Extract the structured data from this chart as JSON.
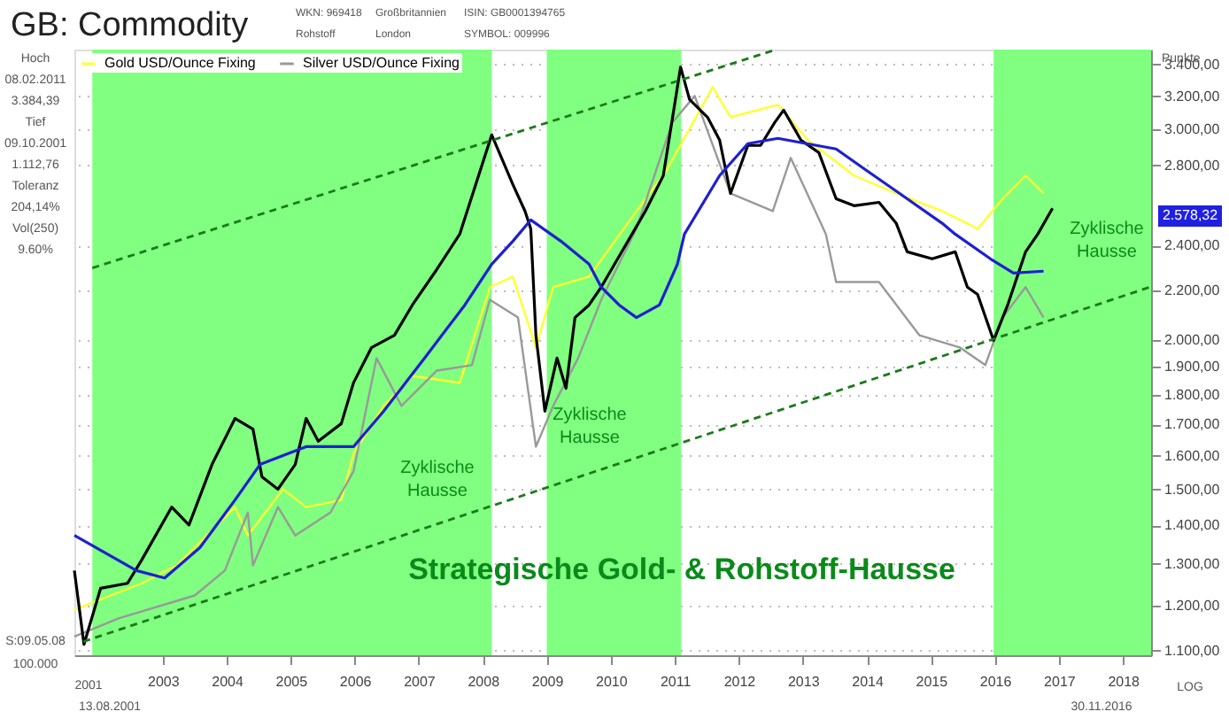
{
  "chart_data": {
    "type": "line",
    "title": "GB: Commodity",
    "ylabel": "Punkte",
    "xlim": [
      2001.62,
      2018.44
    ],
    "xticks": [
      2003,
      2004,
      2005,
      2006,
      2007,
      2008,
      2009,
      2010,
      2011,
      2012,
      2013,
      2014,
      2015,
      2016,
      2017,
      2018
    ],
    "ylim": [
      1090,
      3500
    ],
    "log": true,
    "yticks": [
      {
        "value": 1100,
        "label": "1.100,00"
      },
      {
        "value": 1200,
        "label": "1.200,00"
      },
      {
        "value": 1300,
        "label": "1.300,00"
      },
      {
        "value": 1400,
        "label": "1.400,00"
      },
      {
        "value": 1500,
        "label": "1.500,00"
      },
      {
        "value": 1600,
        "label": "1.600,00"
      },
      {
        "value": 1700,
        "label": "1.700,00"
      },
      {
        "value": 1800,
        "label": "1.800,00"
      },
      {
        "value": 1900,
        "label": "1.900,00"
      },
      {
        "value": 2000,
        "label": "2.000,00"
      },
      {
        "value": 2200,
        "label": "2.200,00"
      },
      {
        "value": 2400,
        "label": "2.400,00"
      },
      {
        "value": 2800,
        "label": "2.800,00"
      },
      {
        "value": 3000,
        "label": "3.000,00"
      },
      {
        "value": 3200,
        "label": "3.200,00"
      },
      {
        "value": 3400,
        "label": "3.400,00"
      }
    ],
    "grid": "y",
    "legend": "top left",
    "bands": [
      {
        "axis": "x",
        "from": 2001.9,
        "to": 2008.14,
        "color": "#80ff80"
      },
      {
        "axis": "x",
        "from": 2009.0,
        "to": 2011.1,
        "color": "#80ff80"
      },
      {
        "axis": "x",
        "from": 2015.98,
        "to": 2018.44,
        "color": "#80ff80"
      }
    ],
    "series": [
      {
        "name": "Gold USD/Ounce Fixing",
        "color": "#ffff33",
        "x": [
          2001.62,
          2002.67,
          2003.22,
          2004.13,
          2004.33,
          2004.88,
          2005.24,
          2005.79,
          2005.98,
          2006.45,
          2006.9,
          2007.64,
          2008.11,
          2008.47,
          2008.83,
          2009.1,
          2009.66,
          2010.4,
          2010.87,
          2011.59,
          2011.87,
          2012.61,
          2013.08,
          2013.8,
          2014.46,
          2015.18,
          2015.57,
          2015.73,
          2016.12,
          2016.48,
          2016.76
        ],
        "values": [
          1190,
          1252,
          1296,
          1450,
          1373,
          1501,
          1450,
          1470,
          1607,
          1762,
          1867,
          1842,
          2215,
          2260,
          1971,
          2215,
          2260,
          2564,
          2774,
          3256,
          3073,
          3147,
          2940,
          2746,
          2653,
          2564,
          2504,
          2478,
          2626,
          2746,
          2653
        ]
      },
      {
        "name": "Silver USD/Ounce Fixing",
        "color": "#999999",
        "x": [
          2001.62,
          2002.31,
          2003.5,
          2003.97,
          2004.33,
          2004.41,
          2004.8,
          2005.07,
          2005.62,
          2005.98,
          2006.34,
          2006.73,
          2007.28,
          2007.83,
          2008.11,
          2008.55,
          2008.83,
          2009.1,
          2009.49,
          2009.85,
          2010.4,
          2010.96,
          2011.31,
          2011.87,
          2012.53,
          2012.81,
          2013.36,
          2013.52,
          2014.19,
          2014.82,
          2015.46,
          2015.85,
          2016.12,
          2016.48,
          2016.76
        ],
        "values": [
          1130,
          1170,
          1223,
          1283,
          1435,
          1296,
          1450,
          1373,
          1435,
          1553,
          1932,
          1762,
          1886,
          1906,
          2162,
          2089,
          1629,
          1762,
          1932,
          2162,
          2478,
          3041,
          3201,
          2653,
          2564,
          2841,
          2453,
          2237,
          2237,
          2019,
          1971,
          1906,
          2089,
          2215,
          2089
        ]
      },
      {
        "color": "#000000",
        "x": [
          2001.62,
          2001.77,
          2002.03,
          2002.45,
          2002.67,
          2003.14,
          2003.41,
          2003.77,
          2004.13,
          2004.41,
          2004.55,
          2004.8,
          2005.07,
          2005.24,
          2005.43,
          2005.79,
          2005.98,
          2006.26,
          2006.62,
          2006.9,
          2007.28,
          2007.64,
          2008.14,
          2008.47,
          2008.66,
          2008.75,
          2008.83,
          2008.97,
          2009.16,
          2009.3,
          2009.44,
          2009.66,
          2009.85,
          2010.54,
          2010.82,
          2011.09,
          2011.23,
          2011.51,
          2011.7,
          2011.87,
          2012.14,
          2012.34,
          2012.56,
          2012.7,
          2012.97,
          2013.25,
          2013.52,
          2013.8,
          2014.19,
          2014.46,
          2014.63,
          2015.02,
          2015.38,
          2015.57,
          2015.73,
          2015.98,
          2016.2,
          2016.48,
          2016.67,
          2016.9
        ],
        "values": [
          1283,
          1113,
          1240,
          1252,
          1309,
          1450,
          1401,
          1574,
          1720,
          1685,
          1537,
          1501,
          1574,
          1720,
          1646,
          1703,
          1842,
          1971,
          2019,
          2140,
          2291,
          2453,
          2970,
          2699,
          2564,
          2478,
          2019,
          1744,
          1932,
          1823,
          2089,
          2140,
          2215,
          2564,
          2746,
          3384,
          3179,
          3073,
          2940,
          2653,
          2910,
          2910,
          3041,
          3115,
          2940,
          2870,
          2626,
          2591,
          2608,
          2504,
          2371,
          2339,
          2371,
          2215,
          2184,
          1999,
          2140,
          2371,
          2453,
          2578
        ]
      },
      {
        "color": "#1f1fd0",
        "x": [
          2001.62,
          2002.59,
          2003.03,
          2003.58,
          2004.13,
          2004.52,
          2005.24,
          2005.98,
          2006.45,
          2007.09,
          2007.72,
          2008.14,
          2008.47,
          2008.75,
          2009.22,
          2009.66,
          2009.85,
          2010.13,
          2010.4,
          2010.76,
          2011.04,
          2011.15,
          2011.7,
          2012.14,
          2012.61,
          2013.52,
          2013.99,
          2014.63,
          2015.18,
          2015.38,
          2015.93,
          2016.29,
          2016.76
        ],
        "values": [
          1373,
          1283,
          1265,
          1341,
          1470,
          1574,
          1629,
          1629,
          1744,
          1932,
          2140,
          2315,
          2420,
          2521,
          2420,
          2315,
          2215,
          2140,
          2089,
          2140,
          2315,
          2453,
          2746,
          2920,
          2950,
          2890,
          2774,
          2626,
          2504,
          2453,
          2339,
          2276,
          2284
        ]
      },
      {
        "color": "#1a7a1a",
        "line_style": "dashed",
        "x": [
          2001.9,
          2012.58
        ],
        "values": [
          2298,
          3500
        ]
      },
      {
        "color": "#1a7a1a",
        "line_style": "dashed",
        "x": [
          2001.76,
          2018.41
        ],
        "values": [
          1119,
          2214
        ]
      }
    ],
    "annotations": [
      "WKN: 969418",
      "Rohstoff",
      "Großbritannien",
      "London",
      "ISIN: GB0001394765",
      "SYMBOL: 009996",
      "Hoch",
      "08.02.2011",
      "3.384,39",
      "Tief",
      "09.10.2001",
      "1.112,76",
      "Toleranz",
      "204,14%",
      "Vol(250)",
      "9.60%",
      "S:09.05.08",
      "100.000",
      "13.08.2001",
      "30.11.2016",
      "LOG",
      "2001",
      "Zyklische Hausse",
      "Zyklische Hausse",
      "Zyklische Hausse",
      "Strategische Gold- & Rohstoff-Hausse",
      "2.578,32"
    ]
  }
}
